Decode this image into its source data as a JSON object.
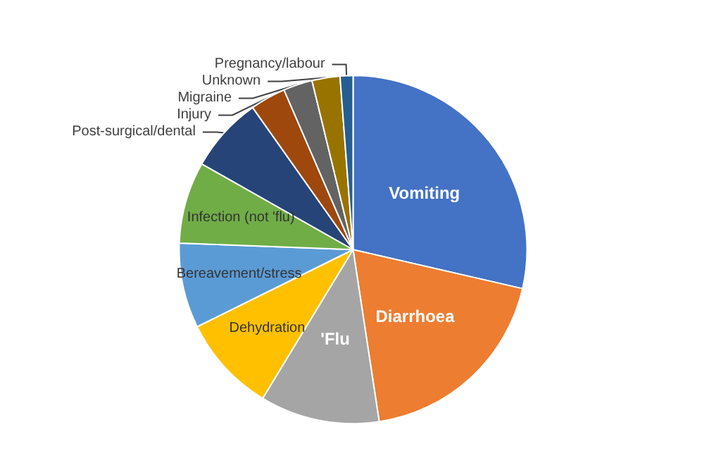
{
  "chart_data": {
    "type": "pie",
    "categories": [
      "Vomiting",
      "Diarrhoea",
      "'Flu",
      "Dehydration",
      "Bereavement/stress",
      "Infection (not 'flu)",
      "Post-surgical/dental",
      "Injury",
      "Migraine",
      "Unknown",
      "Pregnancy/labour"
    ],
    "values": [
      28.6,
      19.0,
      11.1,
      9.0,
      7.9,
      7.6,
      7.0,
      3.3,
      2.7,
      2.6,
      1.2
    ],
    "colors": [
      "#4472c4",
      "#ed7d31",
      "#a5a5a5",
      "#ffc000",
      "#5b9bd5",
      "#70ad47",
      "#264478",
      "#9e480e",
      "#636363",
      "#997300",
      "#255e91"
    ],
    "legend": false
  }
}
